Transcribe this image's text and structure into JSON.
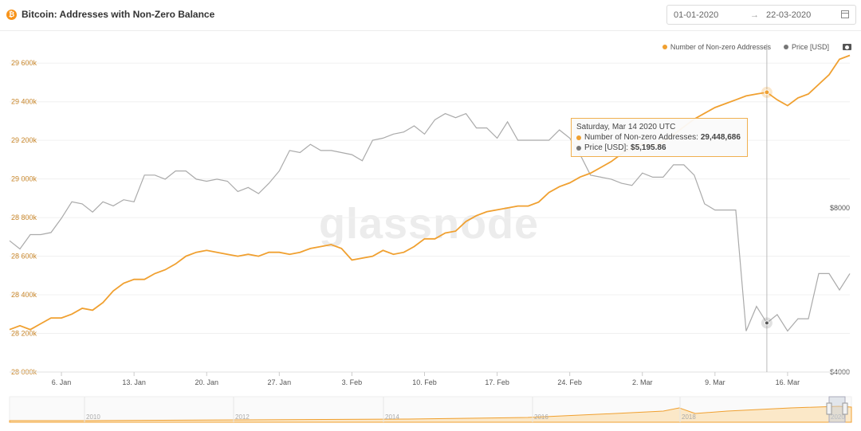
{
  "header": {
    "title": "Bitcoin: Addresses with Non-Zero Balance",
    "date_start": "01-01-2020",
    "date_arrow": "→",
    "date_end": "22-03-2020"
  },
  "legend": {
    "addresses_label": "Number of Non-zero Addresses",
    "price_label": "Price [USD]"
  },
  "tooltip": {
    "date": "Saturday, Mar 14 2020 UTC",
    "addresses_label": "Number of Non-zero Addresses:",
    "addresses_value": "29,448,686",
    "price_label": "Price [USD]:",
    "price_value": "$5,195.86"
  },
  "watermark": "glassnode",
  "chart_data": {
    "type": "line",
    "x_ticks": [
      "6. Jan",
      "13. Jan",
      "20. Jan",
      "27. Jan",
      "3. Feb",
      "10. Feb",
      "17. Feb",
      "24. Feb",
      "2. Mar",
      "9. Mar",
      "16. Mar"
    ],
    "y_left_ticks": [
      "28 000k",
      "28 200k",
      "28 400k",
      "28 600k",
      "28 800k",
      "29 000k",
      "29 200k",
      "29 400k",
      "29 600k"
    ],
    "y_left_range": [
      28000000,
      29700000
    ],
    "y_right_ticks": [
      "$4000",
      "$8000"
    ],
    "y_right_range": [
      4000,
      12000
    ],
    "x": [
      "2020-01-01",
      "2020-01-02",
      "2020-01-03",
      "2020-01-04",
      "2020-01-05",
      "2020-01-06",
      "2020-01-07",
      "2020-01-08",
      "2020-01-09",
      "2020-01-10",
      "2020-01-11",
      "2020-01-12",
      "2020-01-13",
      "2020-01-14",
      "2020-01-15",
      "2020-01-16",
      "2020-01-17",
      "2020-01-18",
      "2020-01-19",
      "2020-01-20",
      "2020-01-21",
      "2020-01-22",
      "2020-01-23",
      "2020-01-24",
      "2020-01-25",
      "2020-01-26",
      "2020-01-27",
      "2020-01-28",
      "2020-01-29",
      "2020-01-30",
      "2020-01-31",
      "2020-02-01",
      "2020-02-02",
      "2020-02-03",
      "2020-02-04",
      "2020-02-05",
      "2020-02-06",
      "2020-02-07",
      "2020-02-08",
      "2020-02-09",
      "2020-02-10",
      "2020-02-11",
      "2020-02-12",
      "2020-02-13",
      "2020-02-14",
      "2020-02-15",
      "2020-02-16",
      "2020-02-17",
      "2020-02-18",
      "2020-02-19",
      "2020-02-20",
      "2020-02-21",
      "2020-02-22",
      "2020-02-23",
      "2020-02-24",
      "2020-02-25",
      "2020-02-26",
      "2020-02-27",
      "2020-02-28",
      "2020-02-29",
      "2020-03-01",
      "2020-03-02",
      "2020-03-03",
      "2020-03-04",
      "2020-03-05",
      "2020-03-06",
      "2020-03-07",
      "2020-03-08",
      "2020-03-09",
      "2020-03-10",
      "2020-03-11",
      "2020-03-12",
      "2020-03-13",
      "2020-03-14",
      "2020-03-15",
      "2020-03-16",
      "2020-03-17",
      "2020-03-18",
      "2020-03-19",
      "2020-03-20",
      "2020-03-21",
      "2020-03-22"
    ],
    "series": [
      {
        "name": "Number of Non-zero Addresses",
        "color": "#f0a030",
        "axis": "left",
        "values": [
          28220000,
          28240000,
          28220000,
          28250000,
          28280000,
          28280000,
          28300000,
          28330000,
          28320000,
          28360000,
          28420000,
          28460000,
          28480000,
          28480000,
          28510000,
          28530000,
          28560000,
          28600000,
          28620000,
          28630000,
          28620000,
          28610000,
          28600000,
          28610000,
          28600000,
          28620000,
          28620000,
          28610000,
          28620000,
          28640000,
          28650000,
          28660000,
          28640000,
          28580000,
          28590000,
          28600000,
          28630000,
          28610000,
          28620000,
          28650000,
          28690000,
          28690000,
          28720000,
          28730000,
          28780000,
          28810000,
          28830000,
          28840000,
          28850000,
          28860000,
          28860000,
          28880000,
          28930000,
          28960000,
          28980000,
          29010000,
          29030000,
          29060000,
          29090000,
          29130000,
          29160000,
          29180000,
          29170000,
          29190000,
          29230000,
          29270000,
          29310000,
          29340000,
          29370000,
          29390000,
          29410000,
          29430000,
          29440000,
          29448686,
          29410000,
          29380000,
          29420000,
          29440000,
          29490000,
          29540000,
          29620000,
          29640000
        ]
      },
      {
        "name": "Price [USD]",
        "color": "#999999",
        "axis": "right",
        "values": [
          7200,
          7000,
          7350,
          7350,
          7400,
          7750,
          8150,
          8100,
          7900,
          8150,
          8050,
          8200,
          8150,
          8800,
          8800,
          8700,
          8900,
          8900,
          8700,
          8650,
          8700,
          8650,
          8400,
          8500,
          8350,
          8600,
          8900,
          9400,
          9350,
          9550,
          9400,
          9400,
          9350,
          9300,
          9150,
          9650,
          9700,
          9800,
          9850,
          10000,
          9800,
          10150,
          10300,
          10200,
          10300,
          9950,
          9950,
          9700,
          10100,
          9650,
          9650,
          9650,
          9650,
          9900,
          9700,
          9300,
          8800,
          8750,
          8700,
          8600,
          8550,
          8850,
          8750,
          8750,
          9050,
          9050,
          8800,
          8100,
          7950,
          7950,
          7950,
          5000,
          5600,
          5195.86,
          5400,
          5000,
          5300,
          5300,
          6400,
          6400,
          6000,
          6400
        ]
      }
    ],
    "highlight": {
      "date": "2020-03-14",
      "addresses": 29448686,
      "price": 5195.86
    },
    "navigator_ticks": [
      "2010",
      "2012",
      "2014",
      "2016",
      "2018",
      "2020"
    ]
  }
}
